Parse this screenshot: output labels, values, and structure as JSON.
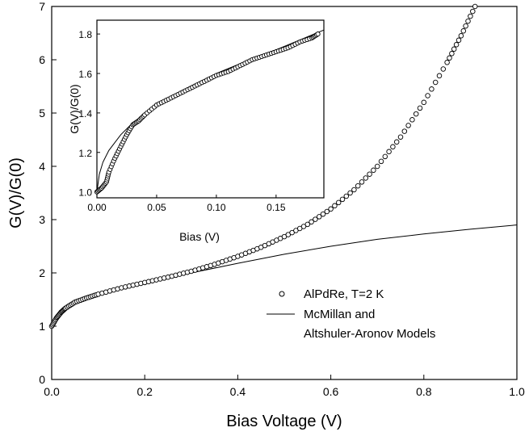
{
  "chart_data": [
    {
      "type": "scatter",
      "xlabel": "Bias Voltage  (V)",
      "ylabel": "G(V)/G(0)",
      "xlim": [
        0.0,
        1.0
      ],
      "ylim": [
        0,
        7
      ],
      "x_ticks": [
        "0.0",
        "0.2",
        "0.4",
        "0.6",
        "0.8",
        "1.0"
      ],
      "y_ticks": [
        "0",
        "1",
        "2",
        "3",
        "4",
        "5",
        "6",
        "7"
      ],
      "legend": [
        {
          "label": "AlPdRe,   T=2 K",
          "marker": "open-circle"
        },
        {
          "label_lines": [
            "McMillan and",
            "Altshuler-Aronov Models"
          ],
          "marker": "line"
        }
      ],
      "series": [
        {
          "name": "AlPdRe,   T=2 K",
          "style": "open-circle",
          "points": [
            [
              0.0,
              1.0
            ],
            [
              0.01,
              1.15
            ],
            [
              0.02,
              1.26
            ],
            [
              0.03,
              1.34
            ],
            [
              0.05,
              1.45
            ],
            [
              0.075,
              1.53
            ],
            [
              0.1,
              1.6
            ],
            [
              0.15,
              1.72
            ],
            [
              0.2,
              1.82
            ],
            [
              0.25,
              1.92
            ],
            [
              0.3,
              2.03
            ],
            [
              0.35,
              2.16
            ],
            [
              0.4,
              2.31
            ],
            [
              0.45,
              2.48
            ],
            [
              0.5,
              2.68
            ],
            [
              0.55,
              2.91
            ],
            [
              0.6,
              3.2
            ],
            [
              0.65,
              3.56
            ],
            [
              0.7,
              4.0
            ],
            [
              0.75,
              4.55
            ],
            [
              0.8,
              5.2
            ],
            [
              0.85,
              5.95
            ],
            [
              0.88,
              6.45
            ],
            [
              0.91,
              7.0
            ]
          ]
        },
        {
          "name": "McMillan and Altshuler-Aronov Models",
          "style": "line",
          "points": [
            [
              0.0,
              1.0
            ],
            [
              0.005,
              1.12
            ],
            [
              0.01,
              1.2
            ],
            [
              0.02,
              1.3
            ],
            [
              0.04,
              1.42
            ],
            [
              0.07,
              1.53
            ],
            [
              0.1,
              1.61
            ],
            [
              0.15,
              1.72
            ],
            [
              0.2,
              1.82
            ],
            [
              0.3,
              2.0
            ],
            [
              0.4,
              2.18
            ],
            [
              0.5,
              2.35
            ],
            [
              0.6,
              2.5
            ],
            [
              0.7,
              2.63
            ],
            [
              0.8,
              2.73
            ],
            [
              0.9,
              2.82
            ],
            [
              1.0,
              2.9
            ]
          ]
        }
      ]
    },
    {
      "type": "scatter",
      "xlabel": "Bias  (V)",
      "ylabel": "G(V)/G(0)",
      "xlim": [
        0.0,
        0.19
      ],
      "ylim": [
        0.97,
        1.87
      ],
      "x_ticks": [
        "0.00",
        "0.05",
        "0.10",
        "0.15"
      ],
      "y_ticks": [
        "1.0",
        "1.2",
        "1.4",
        "1.6",
        "1.8"
      ],
      "series": [
        {
          "name": "AlPdRe,   T=2 K",
          "style": "open-circle",
          "points": [
            [
              0.0,
              1.0
            ],
            [
              0.004,
              1.02
            ],
            [
              0.008,
              1.05
            ],
            [
              0.01,
              1.1
            ],
            [
              0.015,
              1.17
            ],
            [
              0.02,
              1.23
            ],
            [
              0.025,
              1.29
            ],
            [
              0.03,
              1.34
            ],
            [
              0.035,
              1.36
            ],
            [
              0.04,
              1.39
            ],
            [
              0.05,
              1.44
            ],
            [
              0.06,
              1.47
            ],
            [
              0.07,
              1.5
            ],
            [
              0.08,
              1.53
            ],
            [
              0.09,
              1.56
            ],
            [
              0.1,
              1.59
            ],
            [
              0.11,
              1.61
            ],
            [
              0.12,
              1.64
            ],
            [
              0.13,
              1.67
            ],
            [
              0.14,
              1.69
            ],
            [
              0.15,
              1.71
            ],
            [
              0.16,
              1.73
            ],
            [
              0.17,
              1.76
            ],
            [
              0.18,
              1.78
            ],
            [
              0.185,
              1.8
            ]
          ]
        },
        {
          "name": "McMillan and Altshuler-Aronov Models",
          "style": "line",
          "points": [
            [
              0.0,
              1.0
            ],
            [
              0.002,
              1.09
            ],
            [
              0.005,
              1.15
            ],
            [
              0.01,
              1.21
            ],
            [
              0.02,
              1.29
            ],
            [
              0.03,
              1.35
            ],
            [
              0.05,
              1.44
            ],
            [
              0.07,
              1.51
            ],
            [
              0.1,
              1.6
            ],
            [
              0.12,
              1.65
            ],
            [
              0.15,
              1.72
            ],
            [
              0.17,
              1.77
            ],
            [
              0.19,
              1.82
            ]
          ]
        }
      ]
    }
  ]
}
